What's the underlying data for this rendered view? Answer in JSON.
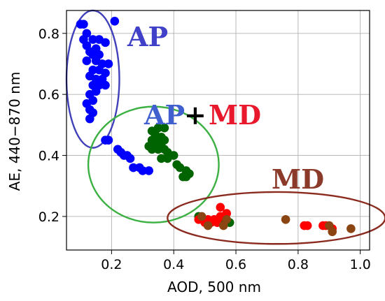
{
  "chart_data": {
    "type": "scatter",
    "xlabel": "AOD, 500 nm",
    "ylabel": "AE, 440−870 nm",
    "xlim": [
      0.055,
      1.03
    ],
    "ylim": [
      0.09,
      0.875
    ],
    "xticks": [
      0.2,
      0.4,
      0.6,
      0.8,
      1.0
    ],
    "xtick_labels": [
      "0.2",
      "0.4",
      "0.6",
      "0.8",
      "1.0"
    ],
    "yticks": [
      0.2,
      0.4,
      0.6,
      0.8
    ],
    "ytick_labels": [
      "0.2",
      "0.4",
      "0.6",
      "0.8"
    ],
    "grid": true,
    "colors": {
      "ap": "#0000ff",
      "apmd": "#006400",
      "md_red": "#ff0000",
      "md_brown": "#8b4513"
    },
    "series": [
      {
        "color": "#0000ff",
        "points": [
          [
            0.1,
            0.83
          ],
          [
            0.11,
            0.83
          ],
          [
            0.12,
            0.8
          ],
          [
            0.11,
            0.78
          ],
          [
            0.12,
            0.76
          ],
          [
            0.14,
            0.78
          ],
          [
            0.16,
            0.78
          ],
          [
            0.18,
            0.77
          ],
          [
            0.15,
            0.75
          ],
          [
            0.13,
            0.74
          ],
          [
            0.14,
            0.73
          ],
          [
            0.16,
            0.73
          ],
          [
            0.12,
            0.71
          ],
          [
            0.15,
            0.71
          ],
          [
            0.17,
            0.7
          ],
          [
            0.19,
            0.7
          ],
          [
            0.14,
            0.68
          ],
          [
            0.16,
            0.68
          ],
          [
            0.18,
            0.67
          ],
          [
            0.13,
            0.66
          ],
          [
            0.15,
            0.65
          ],
          [
            0.17,
            0.65
          ],
          [
            0.14,
            0.63
          ],
          [
            0.16,
            0.63
          ],
          [
            0.18,
            0.63
          ],
          [
            0.15,
            0.61
          ],
          [
            0.13,
            0.6
          ],
          [
            0.14,
            0.58
          ],
          [
            0.12,
            0.57
          ],
          [
            0.13,
            0.55
          ],
          [
            0.14,
            0.54
          ],
          [
            0.13,
            0.52
          ],
          [
            0.21,
            0.84
          ],
          [
            0.18,
            0.45
          ],
          [
            0.19,
            0.45
          ],
          [
            0.22,
            0.42
          ],
          [
            0.23,
            0.41
          ],
          [
            0.24,
            0.4
          ],
          [
            0.25,
            0.4
          ],
          [
            0.26,
            0.39
          ],
          [
            0.27,
            0.36
          ],
          [
            0.29,
            0.36
          ],
          [
            0.3,
            0.35
          ],
          [
            0.32,
            0.35
          ]
        ]
      },
      {
        "color": "#006400",
        "points": [
          [
            0.33,
            0.48
          ],
          [
            0.35,
            0.49
          ],
          [
            0.37,
            0.49
          ],
          [
            0.34,
            0.47
          ],
          [
            0.36,
            0.46
          ],
          [
            0.33,
            0.45
          ],
          [
            0.35,
            0.45
          ],
          [
            0.37,
            0.45
          ],
          [
            0.34,
            0.44
          ],
          [
            0.36,
            0.43
          ],
          [
            0.32,
            0.43
          ],
          [
            0.33,
            0.42
          ],
          [
            0.35,
            0.42
          ],
          [
            0.37,
            0.42
          ],
          [
            0.38,
            0.41
          ],
          [
            0.4,
            0.4
          ],
          [
            0.38,
            0.39
          ],
          [
            0.36,
            0.39
          ],
          [
            0.41,
            0.37
          ],
          [
            0.42,
            0.36
          ],
          [
            0.44,
            0.35
          ],
          [
            0.45,
            0.34
          ],
          [
            0.43,
            0.33
          ],
          [
            0.44,
            0.33
          ],
          [
            0.56,
            0.18
          ],
          [
            0.58,
            0.18
          ],
          [
            0.48,
            0.2
          ],
          [
            0.55,
            0.19
          ]
        ]
      },
      {
        "color": "#ff0000",
        "points": [
          [
            0.48,
            0.19
          ],
          [
            0.5,
            0.18
          ],
          [
            0.52,
            0.18
          ],
          [
            0.53,
            0.19
          ],
          [
            0.55,
            0.2
          ],
          [
            0.57,
            0.21
          ],
          [
            0.55,
            0.23
          ],
          [
            0.51,
            0.19
          ],
          [
            0.54,
            0.18
          ],
          [
            0.82,
            0.17
          ],
          [
            0.83,
            0.17
          ],
          [
            0.88,
            0.17
          ],
          [
            0.89,
            0.17
          ],
          [
            0.91,
            0.16
          ]
        ]
      },
      {
        "color": "#8b4513",
        "points": [
          [
            0.49,
            0.2
          ],
          [
            0.51,
            0.17
          ],
          [
            0.56,
            0.17
          ],
          [
            0.57,
            0.19
          ],
          [
            0.76,
            0.19
          ],
          [
            0.9,
            0.17
          ],
          [
            0.91,
            0.15
          ],
          [
            0.97,
            0.16
          ]
        ]
      }
    ],
    "ellipses": [
      {
        "label": "AP",
        "color": "#4040bb",
        "cx": 0.14,
        "cy": 0.65,
        "rx": 0.085,
        "ry": 0.225
      },
      {
        "label": "AP + MD",
        "color": "#3cb043",
        "cx": 0.335,
        "cy": 0.37,
        "rx": 0.21,
        "ry": 0.19
      },
      {
        "label": "MD",
        "color": "#8b2a1f",
        "cx": 0.73,
        "cy": 0.195,
        "rx": 0.35,
        "ry": 0.085
      }
    ],
    "annotations": {
      "ap": {
        "text": "AP",
        "color": "#4040c8"
      },
      "apmd_ap": {
        "text": "AP",
        "color": "#4060d0"
      },
      "apmd_plus": {
        "text": "+",
        "color": "#000000"
      },
      "apmd_md": {
        "text": "MD",
        "color": "#e8192c"
      },
      "md": {
        "text": "MD",
        "color": "#8b3a2a"
      }
    }
  }
}
